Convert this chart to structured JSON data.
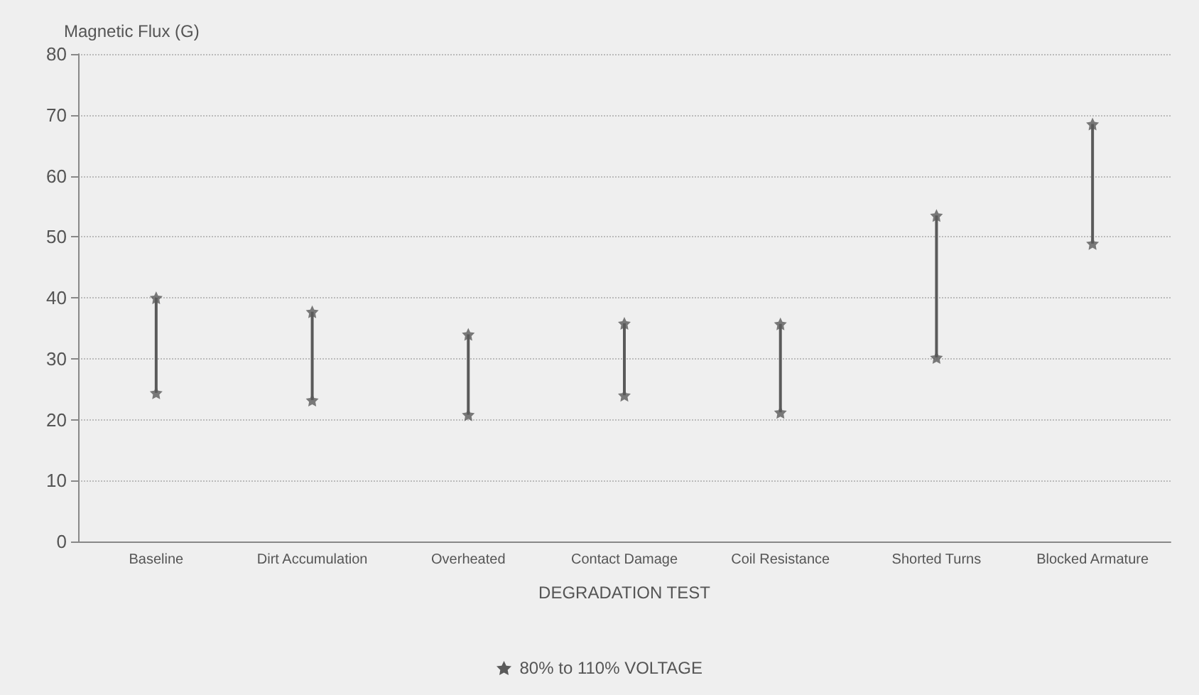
{
  "chart_data": {
    "type": "bar",
    "ylabel": "Magnetic Flux (G)",
    "xlabel": "DEGRADATION TEST",
    "categories": [
      "Baseline",
      "Dirt Accumulation",
      "Overheated",
      "Contact Damage",
      "Coil Resistance",
      "Shorted Turns",
      "Blocked Armature"
    ],
    "series": [
      {
        "name": "80% to 110% VOLTAGE",
        "color": "#5a5a5a",
        "base": [
          24.4,
          23.2,
          20.8,
          24.0,
          21.2,
          30.2,
          48.9
        ],
        "values": [
          15.6,
          14.5,
          13.2,
          11.8,
          14.5,
          23.3,
          19.6
        ]
      },
      {
        "type": "scatter",
        "color": "#5a5a5a",
        "x": [
          "Baseline",
          "Baseline",
          "Dirt Accumulation",
          "Dirt Accumulation",
          "Overheated",
          "Overheated",
          "Contact Damage",
          "Contact Damage",
          "Coil Resistance",
          "Coil Resistance",
          "Shorted Turns",
          "Shorted Turns",
          "Blocked Armature",
          "Blocked Armature"
        ],
        "values": [
          24.4,
          40.0,
          23.2,
          37.7,
          20.8,
          34.0,
          24.0,
          35.8,
          21.2,
          35.7,
          30.2,
          53.5,
          48.9,
          68.5
        ]
      }
    ],
    "ylim": [
      0,
      80
    ],
    "yticks": [
      0,
      10,
      20,
      30,
      40,
      50,
      60,
      70,
      80
    ],
    "grid": "y",
    "legend": "bottom",
    "marker": "star"
  }
}
